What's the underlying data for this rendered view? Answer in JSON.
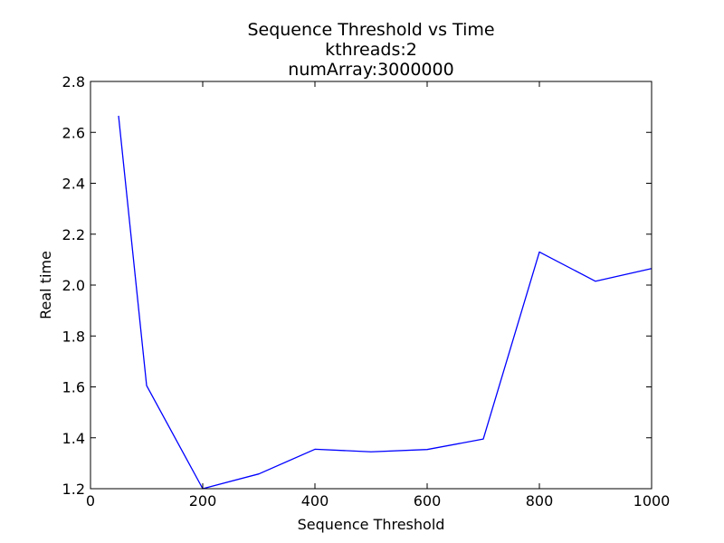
{
  "chart_data": {
    "type": "line",
    "title": [
      "Sequence Threshold vs Time",
      "kthreads:2",
      "numArray:3000000"
    ],
    "xlabel": "Sequence Threshold",
    "ylabel": "Real time",
    "xlim": [
      0,
      1000
    ],
    "ylim": [
      1.2,
      2.8
    ],
    "xticks": [
      0,
      200,
      400,
      600,
      800,
      1000
    ],
    "yticks": [
      1.2,
      1.4,
      1.6,
      1.8,
      2.0,
      2.2,
      2.4,
      2.6,
      2.8
    ],
    "xtick_labels": [
      "0",
      "200",
      "400",
      "600",
      "800",
      "1000"
    ],
    "ytick_labels": [
      "1.2",
      "1.4",
      "1.6",
      "1.8",
      "2.0",
      "2.2",
      "2.4",
      "2.6",
      "2.8"
    ],
    "grid": false,
    "legend": "none",
    "series": [
      {
        "color": "#0000ff",
        "x": [
          50,
          100,
          200,
          300,
          400,
          500,
          600,
          700,
          800,
          900,
          1000
        ],
        "y": [
          2.665,
          1.605,
          1.2,
          1.258,
          1.355,
          1.345,
          1.354,
          1.395,
          2.13,
          2.015,
          2.065
        ]
      }
    ]
  }
}
